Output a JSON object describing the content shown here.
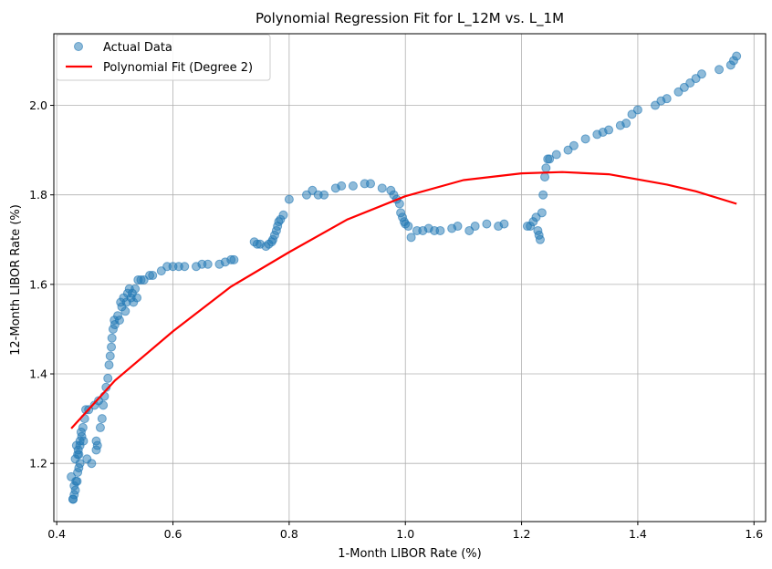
{
  "chart_data": {
    "type": "scatter",
    "title": "Polynomial Regression Fit for L_12M vs. L_1M",
    "xlabel": "1-Month LIBOR Rate (%)",
    "ylabel": "12-Month LIBOR Rate (%)",
    "xlim": [
      0.395,
      1.62
    ],
    "ylim": [
      1.07,
      2.16
    ],
    "xticks": [
      0.4,
      0.6,
      0.8,
      1.0,
      1.2,
      1.4,
      1.6
    ],
    "xtick_labels": [
      "0.4",
      "0.6",
      "0.8",
      "1.0",
      "1.2",
      "1.4",
      "1.6"
    ],
    "yticks": [
      1.2,
      1.4,
      1.6,
      1.8,
      2.0
    ],
    "ytick_labels": [
      "1.2",
      "1.4",
      "1.6",
      "1.8",
      "2.0"
    ],
    "grid": true,
    "legend_position": "top-left",
    "colors": {
      "scatter": "#1f77b4",
      "fit": "#ff0000",
      "grid": "#b0b0b0"
    },
    "series": [
      {
        "name": "Actual Data",
        "kind": "scatter",
        "x": [
          0.425,
          0.43,
          0.428,
          0.432,
          0.435,
          0.43,
          0.433,
          0.428,
          0.436,
          0.44,
          0.438,
          0.434,
          0.432,
          0.437,
          0.44,
          0.442,
          0.438,
          0.436,
          0.44,
          0.443,
          0.445,
          0.448,
          0.446,
          0.45,
          0.452,
          0.455,
          0.46,
          0.465,
          0.468,
          0.47,
          0.472,
          0.468,
          0.475,
          0.478,
          0.48,
          0.482,
          0.485,
          0.488,
          0.49,
          0.492,
          0.494,
          0.495,
          0.497,
          0.499,
          0.5,
          0.505,
          0.508,
          0.51,
          0.512,
          0.515,
          0.518,
          0.52,
          0.522,
          0.525,
          0.528,
          0.53,
          0.532,
          0.535,
          0.538,
          0.54,
          0.545,
          0.55,
          0.56,
          0.565,
          0.58,
          0.59,
          0.6,
          0.61,
          0.62,
          0.64,
          0.65,
          0.66,
          0.68,
          0.69,
          0.7,
          0.705,
          0.74,
          0.745,
          0.75,
          0.76,
          0.765,
          0.77,
          0.772,
          0.775,
          0.778,
          0.78,
          0.782,
          0.785,
          0.79,
          0.8,
          0.83,
          0.84,
          0.85,
          0.86,
          0.88,
          0.89,
          0.91,
          0.93,
          0.94,
          0.96,
          0.975,
          0.98,
          0.985,
          0.99,
          0.992,
          0.995,
          0.998,
          1.0,
          1.005,
          1.01,
          1.02,
          1.03,
          1.04,
          1.05,
          1.06,
          1.08,
          1.09,
          1.11,
          1.12,
          1.14,
          1.16,
          1.17,
          1.21,
          1.215,
          1.22,
          1.225,
          1.228,
          1.23,
          1.232,
          1.235,
          1.237,
          1.24,
          1.242,
          1.245,
          1.248,
          1.26,
          1.28,
          1.29,
          1.31,
          1.33,
          1.34,
          1.35,
          1.37,
          1.38,
          1.39,
          1.4,
          1.43,
          1.44,
          1.45,
          1.47,
          1.48,
          1.49,
          1.5,
          1.51,
          1.54,
          1.56,
          1.565,
          1.57
        ],
        "y": [
          1.17,
          1.15,
          1.12,
          1.14,
          1.16,
          1.13,
          1.16,
          1.12,
          1.18,
          1.2,
          1.22,
          1.24,
          1.21,
          1.23,
          1.25,
          1.27,
          1.19,
          1.22,
          1.24,
          1.26,
          1.28,
          1.3,
          1.25,
          1.32,
          1.21,
          1.32,
          1.2,
          1.33,
          1.23,
          1.24,
          1.34,
          1.25,
          1.28,
          1.3,
          1.33,
          1.35,
          1.37,
          1.39,
          1.42,
          1.44,
          1.46,
          1.48,
          1.5,
          1.52,
          1.51,
          1.53,
          1.52,
          1.56,
          1.55,
          1.57,
          1.54,
          1.56,
          1.58,
          1.59,
          1.57,
          1.58,
          1.56,
          1.59,
          1.57,
          1.61,
          1.61,
          1.61,
          1.62,
          1.62,
          1.63,
          1.64,
          1.64,
          1.64,
          1.64,
          1.64,
          1.645,
          1.645,
          1.645,
          1.65,
          1.655,
          1.655,
          1.695,
          1.69,
          1.69,
          1.685,
          1.69,
          1.695,
          1.7,
          1.71,
          1.72,
          1.73,
          1.74,
          1.745,
          1.755,
          1.79,
          1.8,
          1.81,
          1.8,
          1.8,
          1.815,
          1.82,
          1.82,
          1.825,
          1.825,
          1.815,
          1.81,
          1.8,
          1.79,
          1.78,
          1.76,
          1.75,
          1.74,
          1.735,
          1.73,
          1.705,
          1.72,
          1.72,
          1.725,
          1.72,
          1.72,
          1.725,
          1.73,
          1.72,
          1.73,
          1.735,
          1.73,
          1.735,
          1.73,
          1.73,
          1.74,
          1.75,
          1.72,
          1.71,
          1.7,
          1.76,
          1.8,
          1.84,
          1.86,
          1.88,
          1.88,
          1.89,
          1.9,
          1.91,
          1.925,
          1.935,
          1.94,
          1.945,
          1.955,
          1.96,
          1.98,
          1.99,
          2.0,
          2.01,
          2.015,
          2.03,
          2.04,
          2.05,
          2.06,
          2.07,
          2.08,
          2.09,
          2.1,
          2.11
        ]
      },
      {
        "name": "Polynomial Fit (Degree 2)",
        "kind": "line",
        "x": [
          0.425,
          0.5,
          0.6,
          0.7,
          0.8,
          0.9,
          1.0,
          1.1,
          1.2,
          1.27,
          1.35,
          1.45,
          1.5,
          1.57
        ],
        "y": [
          1.278,
          1.385,
          1.495,
          1.595,
          1.672,
          1.745,
          1.797,
          1.833,
          1.848,
          1.851,
          1.846,
          1.823,
          1.808,
          1.78
        ]
      }
    ]
  }
}
